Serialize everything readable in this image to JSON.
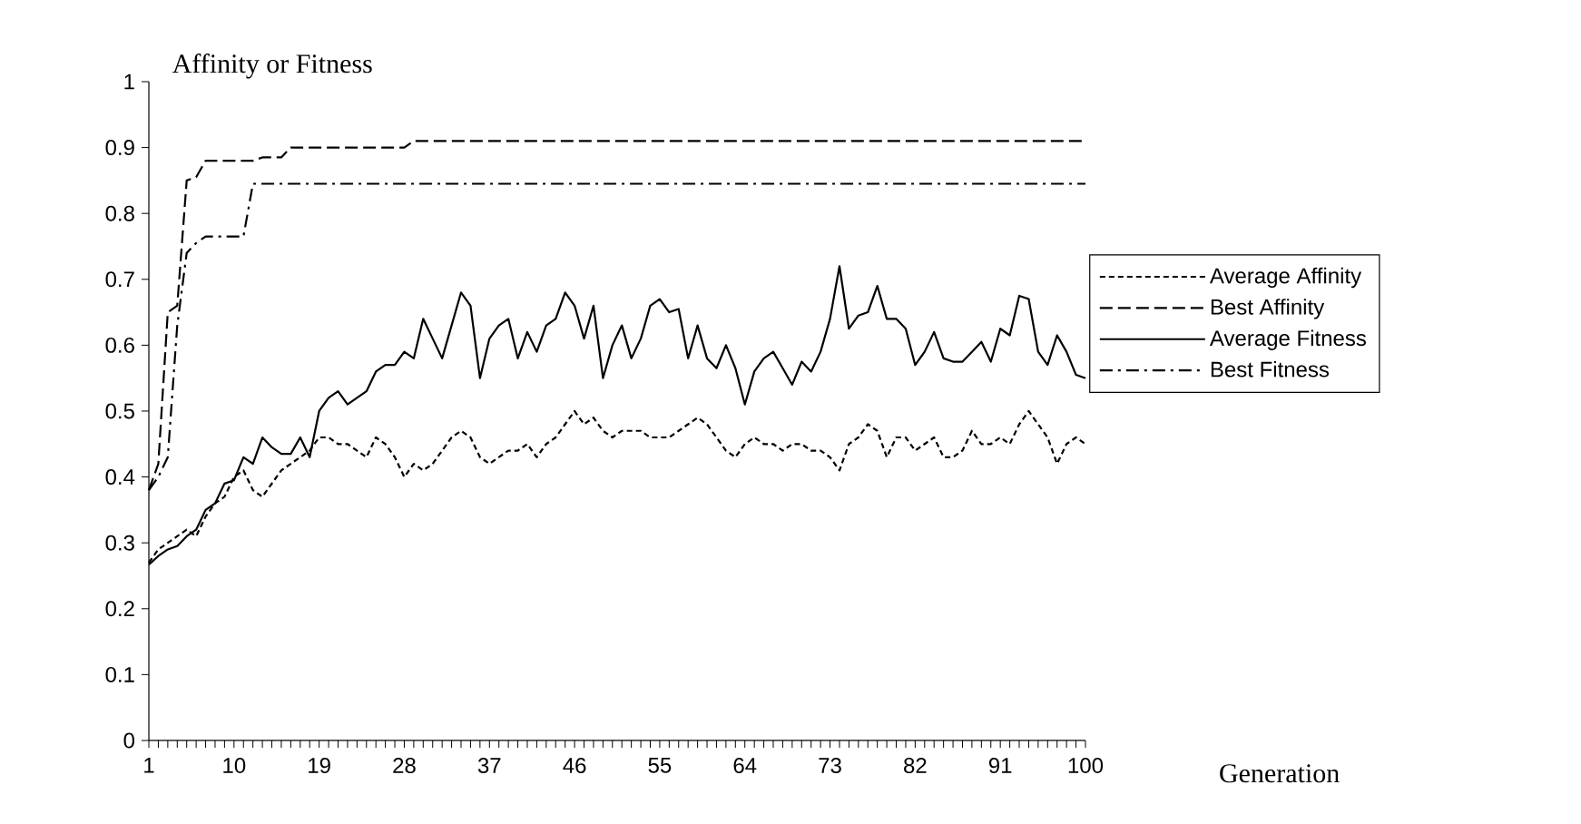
{
  "chart_data": {
    "type": "line",
    "xlabel": "Generation",
    "ylabel": "Affinity or Fitness",
    "categories": [
      "1",
      null,
      null,
      null,
      null,
      null,
      null,
      null,
      null,
      "10",
      null,
      null,
      null,
      null,
      null,
      null,
      null,
      null,
      "19",
      null,
      null,
      null,
      null,
      null,
      null,
      null,
      null,
      "28",
      null,
      null,
      null,
      null,
      null,
      null,
      null,
      null,
      "37",
      null,
      null,
      null,
      null,
      null,
      null,
      null,
      null,
      "46",
      null,
      null,
      null,
      null,
      null,
      null,
      null,
      null,
      "55",
      null,
      null,
      null,
      null,
      null,
      null,
      null,
      null,
      "64",
      null,
      null,
      null,
      null,
      null,
      null,
      null,
      null,
      "73",
      null,
      null,
      null,
      null,
      null,
      null,
      null,
      null,
      "82",
      null,
      null,
      null,
      null,
      null,
      null,
      null,
      null,
      "91",
      null,
      null,
      null,
      null,
      null,
      null,
      null,
      null,
      "100"
    ],
    "ylim": [
      0,
      1
    ],
    "yticks": [
      0,
      0.1,
      0.2,
      0.3,
      0.4,
      0.5,
      0.6,
      0.7,
      0.8,
      0.9,
      1
    ],
    "legend": "right",
    "series": [
      {
        "name": "Average Affinity",
        "color": "#000000",
        "line_style": "dotted",
        "values": [
          0.27,
          0.29,
          0.3,
          0.31,
          0.32,
          0.31,
          0.34,
          0.36,
          0.37,
          0.4,
          0.41,
          0.38,
          0.37,
          0.39,
          0.41,
          0.42,
          0.43,
          0.44,
          0.46,
          0.46,
          0.45,
          0.45,
          0.44,
          0.43,
          0.46,
          0.45,
          0.43,
          0.4,
          0.42,
          0.41,
          0.42,
          0.44,
          0.46,
          0.47,
          0.46,
          0.43,
          0.42,
          0.43,
          0.44,
          0.44,
          0.45,
          0.43,
          0.45,
          0.46,
          0.48,
          0.5,
          0.48,
          0.49,
          0.47,
          0.46,
          0.47,
          0.47,
          0.47,
          0.46,
          0.46,
          0.46,
          0.47,
          0.48,
          0.49,
          0.48,
          0.46,
          0.44,
          0.43,
          0.45,
          0.46,
          0.45,
          0.45,
          0.44,
          0.45,
          0.45,
          0.44,
          0.44,
          0.43,
          0.41,
          0.45,
          0.46,
          0.48,
          0.47,
          0.43,
          0.46,
          0.46,
          0.44,
          0.45,
          0.46,
          0.43,
          0.43,
          0.44,
          0.47,
          0.45,
          0.45,
          0.46,
          0.45,
          0.48,
          0.5,
          0.48,
          0.46,
          0.42,
          0.45,
          0.46,
          0.45
        ]
      },
      {
        "name": "Best Affinity",
        "color": "#000000",
        "line_style": "dashed",
        "values": [
          0.38,
          0.42,
          0.65,
          0.66,
          0.85,
          0.855,
          0.88,
          0.88,
          0.88,
          0.88,
          0.88,
          0.88,
          0.885,
          0.885,
          0.885,
          0.9,
          0.9,
          0.9,
          0.9,
          0.9,
          0.9,
          0.9,
          0.9,
          0.9,
          0.9,
          0.9,
          0.9,
          0.9,
          0.91,
          0.91,
          0.91,
          0.91,
          0.91,
          0.91,
          0.91,
          0.91,
          0.91,
          0.91,
          0.91,
          0.91,
          0.91,
          0.91,
          0.91,
          0.91,
          0.91,
          0.91,
          0.91,
          0.91,
          0.91,
          0.91,
          0.91,
          0.91,
          0.91,
          0.91,
          0.91,
          0.91,
          0.91,
          0.91,
          0.91,
          0.91,
          0.91,
          0.91,
          0.91,
          0.91,
          0.91,
          0.91,
          0.91,
          0.91,
          0.91,
          0.91,
          0.91,
          0.91,
          0.91,
          0.91,
          0.91,
          0.91,
          0.91,
          0.91,
          0.91,
          0.91,
          0.91,
          0.91,
          0.91,
          0.91,
          0.91,
          0.91,
          0.91,
          0.91,
          0.91,
          0.91,
          0.91,
          0.91,
          0.91,
          0.91,
          0.91,
          0.91,
          0.91,
          0.91,
          0.91,
          0.91
        ]
      },
      {
        "name": "Average Fitness",
        "color": "#000000",
        "line_style": "solid",
        "values": [
          0.267,
          0.28,
          0.29,
          0.295,
          0.31,
          0.32,
          0.35,
          0.36,
          0.39,
          0.395,
          0.43,
          0.42,
          0.46,
          0.445,
          0.435,
          0.435,
          0.46,
          0.43,
          0.5,
          0.52,
          0.53,
          0.51,
          0.52,
          0.53,
          0.56,
          0.57,
          0.57,
          0.59,
          0.58,
          0.64,
          0.61,
          0.58,
          0.63,
          0.68,
          0.66,
          0.55,
          0.61,
          0.63,
          0.64,
          0.58,
          0.62,
          0.59,
          0.63,
          0.64,
          0.68,
          0.66,
          0.61,
          0.66,
          0.55,
          0.6,
          0.63,
          0.58,
          0.61,
          0.66,
          0.67,
          0.65,
          0.655,
          0.58,
          0.63,
          0.58,
          0.565,
          0.6,
          0.565,
          0.51,
          0.56,
          0.58,
          0.59,
          0.565,
          0.54,
          0.575,
          0.56,
          0.59,
          0.64,
          0.72,
          0.625,
          0.645,
          0.65,
          0.69,
          0.64,
          0.64,
          0.625,
          0.57,
          0.59,
          0.62,
          0.58,
          0.575,
          0.575,
          0.59,
          0.605,
          0.575,
          0.625,
          0.615,
          0.675,
          0.67,
          0.59,
          0.57,
          0.615,
          0.59,
          0.555,
          0.55
        ]
      },
      {
        "name": "Best Fitness",
        "color": "#000000",
        "line_style": "dashdot",
        "values": [
          0.38,
          0.4,
          0.43,
          0.63,
          0.74,
          0.755,
          0.765,
          0.765,
          0.765,
          0.765,
          0.765,
          0.845,
          0.845,
          0.845,
          0.845,
          0.845,
          0.845,
          0.845,
          0.845,
          0.845,
          0.845,
          0.845,
          0.845,
          0.845,
          0.845,
          0.845,
          0.845,
          0.845,
          0.845,
          0.845,
          0.845,
          0.845,
          0.845,
          0.845,
          0.845,
          0.845,
          0.845,
          0.845,
          0.845,
          0.845,
          0.845,
          0.845,
          0.845,
          0.845,
          0.845,
          0.845,
          0.845,
          0.845,
          0.845,
          0.845,
          0.845,
          0.845,
          0.845,
          0.845,
          0.845,
          0.845,
          0.845,
          0.845,
          0.845,
          0.845,
          0.845,
          0.845,
          0.845,
          0.845,
          0.845,
          0.845,
          0.845,
          0.845,
          0.845,
          0.845,
          0.845,
          0.845,
          0.845,
          0.845,
          0.845,
          0.845,
          0.845,
          0.845,
          0.845,
          0.845,
          0.845,
          0.845,
          0.845,
          0.845,
          0.845,
          0.845,
          0.845,
          0.845,
          0.845,
          0.845,
          0.845,
          0.845,
          0.845,
          0.845,
          0.845,
          0.845,
          0.845,
          0.845,
          0.845,
          0.845
        ]
      }
    ]
  }
}
